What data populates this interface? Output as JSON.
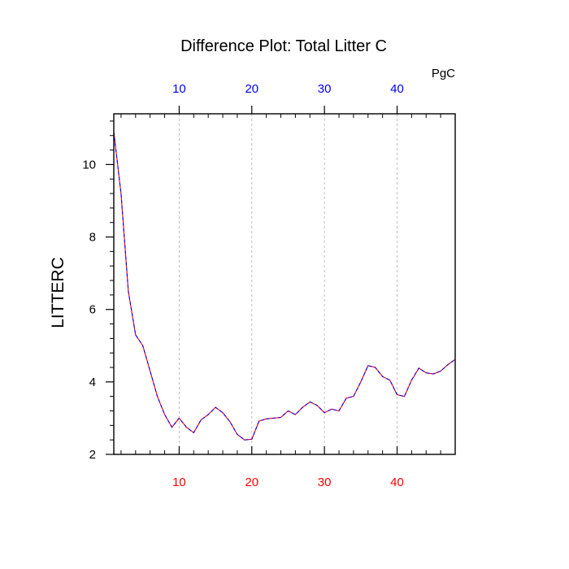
{
  "chart_data": {
    "type": "line",
    "title": "Difference Plot: Total Litter C",
    "units_label": "PgC",
    "ylabel": "LITTERC",
    "xlabel": "",
    "xlim": [
      1,
      48
    ],
    "ylim": [
      2,
      11.4
    ],
    "x_ticks": [
      10,
      20,
      30,
      40
    ],
    "y_ticks": [
      2,
      4,
      6,
      8,
      10
    ],
    "x_tick_labels": [
      "10",
      "20",
      "30",
      "40"
    ],
    "y_tick_labels": [
      "2",
      "4",
      "6",
      "8",
      "10"
    ],
    "grid": "vertical dashed at major x ticks",
    "colors": {
      "bottom_tick_labels": "#ff0000",
      "top_tick_labels": "#0000ff",
      "series_line_1": "#ff0000",
      "series_line_2": "#0000ff",
      "grid": "#b0b0b0"
    },
    "series": [
      {
        "x": [
          1,
          2,
          3,
          4,
          5,
          6,
          7,
          8,
          9,
          10,
          11,
          12,
          13,
          14,
          15,
          16,
          17,
          18,
          19,
          20,
          21,
          22,
          23,
          24,
          25,
          26,
          27,
          28,
          29,
          30,
          31,
          32,
          33,
          34,
          35,
          36,
          37,
          38,
          39,
          40,
          41,
          42,
          43,
          44,
          45,
          46,
          47,
          48
        ],
        "values": [
          10.9,
          9.2,
          6.5,
          5.3,
          5.0,
          4.3,
          3.6,
          3.1,
          2.75,
          3.0,
          2.75,
          2.6,
          2.95,
          3.1,
          3.3,
          3.15,
          2.9,
          2.55,
          2.4,
          2.42,
          2.92,
          2.98,
          3.0,
          3.02,
          3.2,
          3.1,
          3.3,
          3.45,
          3.35,
          3.15,
          3.25,
          3.2,
          3.55,
          3.6,
          4.0,
          4.45,
          4.4,
          4.15,
          4.05,
          3.65,
          3.6,
          4.05,
          4.38,
          4.25,
          4.22,
          4.3,
          4.48,
          4.62
        ]
      }
    ]
  }
}
